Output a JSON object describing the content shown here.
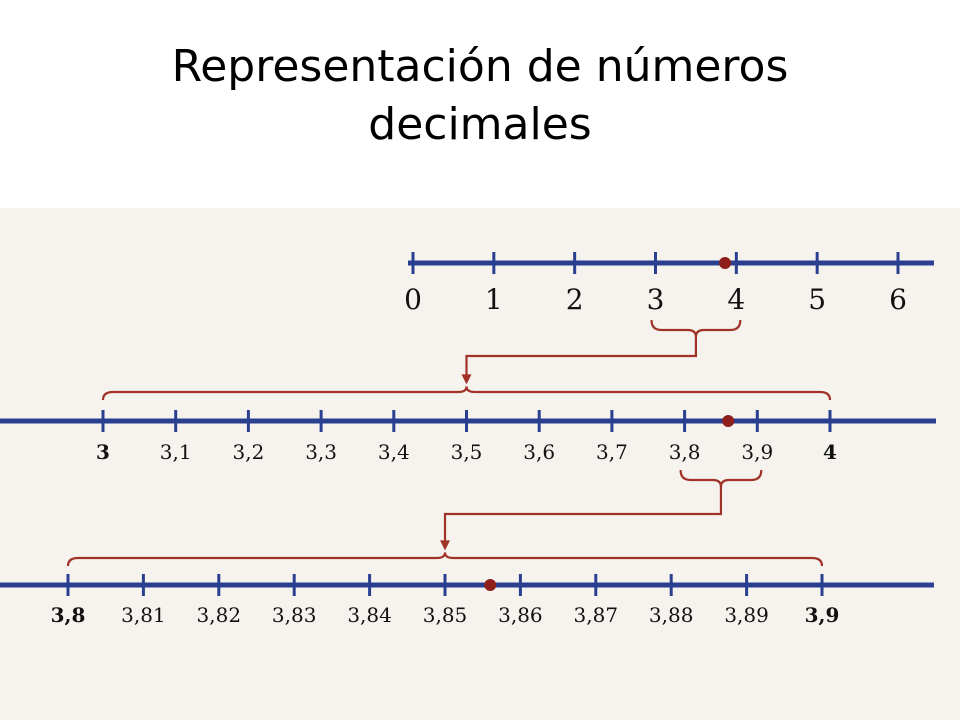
{
  "title": {
    "line1": "Representación de números",
    "line2": "decimales"
  },
  "colors": {
    "axis": "#2a3f8f",
    "bracket": "#a03228",
    "point": "#8e1f1b",
    "background": "#f6f3ee"
  },
  "number_lines": [
    {
      "id": "units",
      "labels": [
        "0",
        "1",
        "2",
        "3",
        "4",
        "5",
        "6"
      ],
      "values": [
        0,
        1,
        2,
        3,
        4,
        5,
        6
      ],
      "bold_labels": [],
      "point_value": 3.86
    },
    {
      "id": "tenths",
      "labels": [
        "3",
        "3,1",
        "3,2",
        "3,3",
        "3,4",
        "3,5",
        "3,6",
        "3,7",
        "3,8",
        "3,9",
        "4"
      ],
      "values": [
        3,
        3.1,
        3.2,
        3.3,
        3.4,
        3.5,
        3.6,
        3.7,
        3.8,
        3.9,
        4
      ],
      "bold_labels": [
        "3",
        "4"
      ],
      "point_value": 3.86
    },
    {
      "id": "hundredths",
      "labels": [
        "3,8",
        "3,81",
        "3,82",
        "3,83",
        "3,84",
        "3,85",
        "3,86",
        "3,87",
        "3,88",
        "3,89",
        "3,9"
      ],
      "values": [
        3.8,
        3.81,
        3.82,
        3.83,
        3.84,
        3.85,
        3.86,
        3.87,
        3.88,
        3.89,
        3.9
      ],
      "bold_labels": [
        "3,8",
        "3,9"
      ],
      "point_value": 3.856
    }
  ],
  "zooms": [
    {
      "from_line": "units",
      "range": [
        3,
        4
      ],
      "to_line": "tenths"
    },
    {
      "from_line": "tenths",
      "range": [
        3.8,
        3.9
      ],
      "to_line": "hundredths"
    }
  ]
}
